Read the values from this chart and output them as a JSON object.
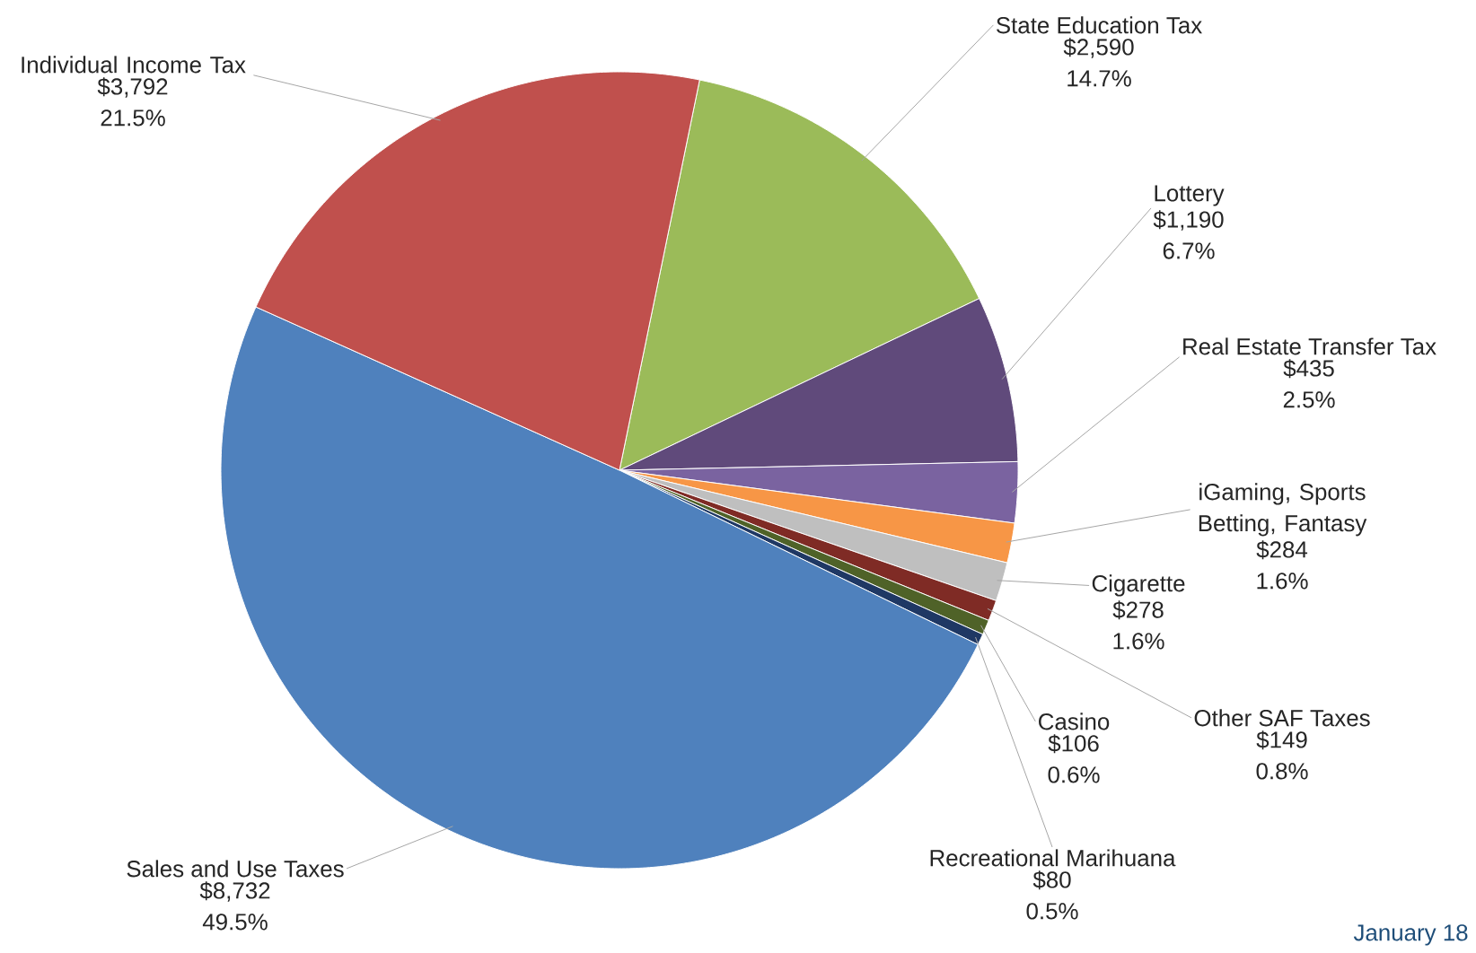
{
  "chart_data": {
    "type": "pie",
    "categories": [
      "State Education Tax",
      "Lottery",
      "Real Estate Transfer Tax",
      "iGaming, Sports Betting, Fantasy",
      "Cigarette",
      "Other SAF Taxes",
      "Casino",
      "Recreational Marihuana",
      "Sales and Use Taxes",
      "Individual Income Tax"
    ],
    "values": [
      2590,
      1190,
      435,
      284,
      278,
      149,
      106,
      80,
      8732,
      3792
    ],
    "value_labels": [
      "$2,590 14.7%",
      "$1,190 6.7%",
      "$435 2.5%",
      "$284 1.6%",
      "$278 1.6%",
      "$149 0.8%",
      "$106 0.6%",
      "$80 0.5%",
      "$8,732 49.5%",
      "$3,792 21.5%"
    ],
    "colors": [
      "#9bbb59",
      "#604a7b",
      "#7a63a0",
      "#f79646",
      "#bfbfbf",
      "#7f2b25",
      "#4f6228",
      "#1f3864",
      "#4f81bd",
      "#c0504d"
    ],
    "annotations": [
      "January 18"
    ]
  }
}
